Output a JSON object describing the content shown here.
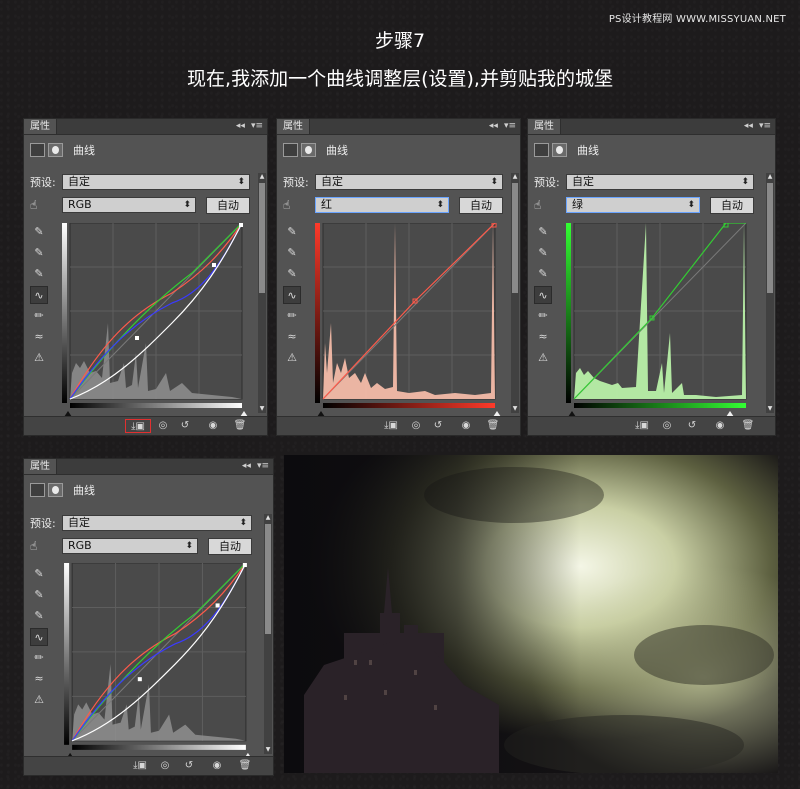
{
  "watermark": "PS设计教程网 WWW.MISSYUAN.NET",
  "step_title": "步骤7",
  "description": "现在,我添加一个曲线调整层(设置),并剪贴我的城堡",
  "panels": [
    {
      "tab": "属性",
      "adj_name": "曲线",
      "preset_label": "预设:",
      "preset_value": "自定",
      "channel": "RGB",
      "auto_label": "自动"
    },
    {
      "tab": "属性",
      "adj_name": "曲线",
      "preset_label": "预设:",
      "preset_value": "自定",
      "channel": "红",
      "auto_label": "自动"
    },
    {
      "tab": "属性",
      "adj_name": "曲线",
      "preset_label": "预设:",
      "preset_value": "自定",
      "channel": "绿",
      "auto_label": "自动"
    },
    {
      "tab": "属性",
      "adj_name": "曲线",
      "preset_label": "预设:",
      "preset_value": "自定",
      "channel": "RGB",
      "auto_label": "自动"
    }
  ],
  "icons": {
    "collapse": "double-chevron-left-icon",
    "menu": "panel-menu-icon",
    "clip": "clip-to-layer-icon",
    "view_prev": "view-previous-state-icon",
    "reset": "reset-icon",
    "visibility": "eye-icon",
    "delete": "trash-icon"
  },
  "colors": {
    "panel_bg": "#535353",
    "red_curve": "#ff5a4a",
    "green_curve": "#33cc33",
    "blue_curve": "#3a3aff",
    "highlight_box": "#e03030"
  }
}
